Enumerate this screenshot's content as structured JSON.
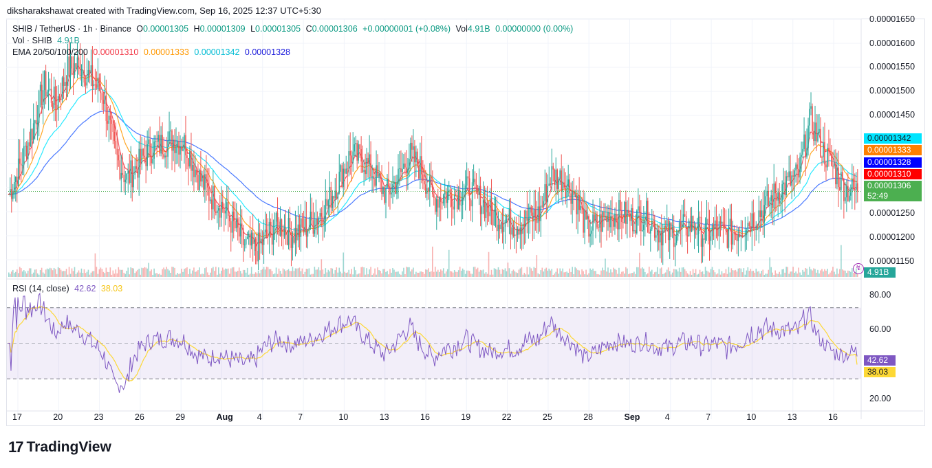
{
  "header": {
    "credit": "diksharakshawat created with TradingView.com, Sep 16, 2025 12:37 UTC+5:30"
  },
  "legend": {
    "symbol": "SHIB / TetherUS · 1h · Binance",
    "o_label": "O",
    "o_value": "0.00001305",
    "h_label": "H",
    "h_value": "0.00001309",
    "l_label": "L",
    "l_value": "0.00001305",
    "c_label": "C",
    "c_value": "0.00001306",
    "change": "+0.00000001 (+0.08%)",
    "vol_label": "Vol",
    "vol_value": "4.91B",
    "vol_change": "0.00000000 (0.00%)",
    "vol_series_label": "Vol · SHIB",
    "vol_series_value": "4.91B",
    "ema_label": "EMA 20/50/100/200",
    "ema20": "0.00001310",
    "ema50": "0.00001333",
    "ema100": "0.00001342",
    "ema200": "0.00001328",
    "rsi_label": "RSI (14, close)",
    "rsi_value": "42.62",
    "rsi_ma_value": "38.03"
  },
  "price_tags": {
    "ema100": "0.00001342",
    "ema50": "0.00001333",
    "ema200": "0.00001328",
    "ema20": "0.00001310",
    "last": "0.00001306",
    "countdown": "52:49",
    "volume": "4.91B",
    "rsi": "42.62",
    "rsi_ma": "38.03"
  },
  "colors": {
    "up": "#26a69a",
    "down": "#ef5350",
    "ema20": "#f23645",
    "ema50": "#ff9800",
    "ema100": "#00e5ff",
    "ema200": "#2962ff",
    "rsi": "#7e57c2",
    "rsi_ma": "#fdd835",
    "last": "#4caf50",
    "ema200_tag": "#0000ff",
    "ema100_tag": "#00e5ff",
    "ema50_tag": "#ff7f00",
    "ema20_tag": "#ff0000"
  },
  "price_axis": [
    "0.00001650",
    "0.00001600",
    "0.00001550",
    "0.00001500",
    "0.00001450",
    "0.00001250",
    "0.00001200",
    "0.00001150"
  ],
  "rsi_axis": [
    "80.00",
    "60.00",
    "20.00"
  ],
  "time_axis": [
    "17",
    "20",
    "23",
    "26",
    "29",
    "Aug",
    "4",
    "7",
    "10",
    "13",
    "16",
    "19",
    "22",
    "25",
    "28",
    "Sep",
    "4",
    "7",
    "10",
    "13",
    "16"
  ],
  "footer": {
    "brand": "TradingView",
    "logo_mark": "17"
  },
  "chart_data": {
    "type": "candlestick",
    "symbol": "SHIB / TetherUS",
    "interval": "1h",
    "y_range": [
      1.135e-05,
      1.65e-05
    ],
    "rsi_range": [
      15,
      85
    ],
    "rsi_bands": [
      30,
      50,
      70
    ],
    "x_ticks": [
      "17",
      "20",
      "23",
      "26",
      "29",
      "Aug",
      "4",
      "7",
      "10",
      "13",
      "16",
      "19",
      "22",
      "25",
      "28",
      "Sep",
      "4",
      "7",
      "10",
      "13",
      "16"
    ],
    "close_path": [
      [
        0,
        1.3e-05
      ],
      [
        1,
        1.36e-05
      ],
      [
        2,
        1.43e-05
      ],
      [
        3,
        1.52e-05
      ],
      [
        4,
        1.48e-05
      ],
      [
        5,
        1.55e-05
      ],
      [
        6,
        1.56e-05
      ],
      [
        7,
        1.53e-05
      ],
      [
        8,
        1.5e-05
      ],
      [
        9,
        1.38e-05
      ],
      [
        10,
        1.33e-05
      ],
      [
        11,
        1.36e-05
      ],
      [
        12,
        1.39e-05
      ],
      [
        13,
        1.4e-05
      ],
      [
        14,
        1.41e-05
      ],
      [
        15,
        1.4e-05
      ],
      [
        16,
        1.34e-05
      ],
      [
        17,
        1.3e-05
      ],
      [
        18,
        1.28e-05
      ],
      [
        19,
        1.24e-05
      ],
      [
        20,
        1.2e-05
      ],
      [
        21,
        1.19e-05
      ],
      [
        22,
        1.22e-05
      ],
      [
        23,
        1.24e-05
      ],
      [
        24,
        1.22e-05
      ],
      [
        25,
        1.23e-05
      ],
      [
        26,
        1.25e-05
      ],
      [
        27,
        1.28e-05
      ],
      [
        28,
        1.33e-05
      ],
      [
        29,
        1.38e-05
      ],
      [
        30,
        1.37e-05
      ],
      [
        31,
        1.34e-05
      ],
      [
        32,
        1.3e-05
      ],
      [
        33,
        1.33e-05
      ],
      [
        34,
        1.38e-05
      ],
      [
        35,
        1.35e-05
      ],
      [
        36,
        1.29e-05
      ],
      [
        37,
        1.3e-05
      ],
      [
        38,
        1.3e-05
      ],
      [
        39,
        1.31e-05
      ],
      [
        40,
        1.29e-05
      ],
      [
        41,
        1.26e-05
      ],
      [
        42,
        1.25e-05
      ],
      [
        43,
        1.24e-05
      ],
      [
        44,
        1.25e-05
      ],
      [
        45,
        1.26e-05
      ],
      [
        46,
        1.34e-05
      ],
      [
        47,
        1.33e-05
      ],
      [
        48,
        1.3e-05
      ],
      [
        49,
        1.23e-05
      ],
      [
        50,
        1.24e-05
      ],
      [
        51,
        1.26e-05
      ],
      [
        52,
        1.26e-05
      ],
      [
        53,
        1.25e-05
      ],
      [
        54,
        1.26e-05
      ],
      [
        55,
        1.23e-05
      ],
      [
        56,
        1.22e-05
      ],
      [
        57,
        1.23e-05
      ],
      [
        58,
        1.24e-05
      ],
      [
        59,
        1.22e-05
      ],
      [
        60,
        1.23e-05
      ],
      [
        61,
        1.22e-05
      ],
      [
        62,
        1.23e-05
      ],
      [
        63,
        1.25e-05
      ],
      [
        64,
        1.27e-05
      ],
      [
        65,
        1.3e-05
      ],
      [
        66,
        1.32e-05
      ],
      [
        67,
        1.34e-05
      ],
      [
        68,
        1.45e-05
      ],
      [
        69,
        1.39e-05
      ],
      [
        70,
        1.35e-05
      ],
      [
        71,
        1.31e-05
      ],
      [
        72,
        1.306e-05
      ]
    ],
    "volume_last": "4.91B",
    "rsi_last": 42.62,
    "rsi_ma_last": 38.03
  }
}
